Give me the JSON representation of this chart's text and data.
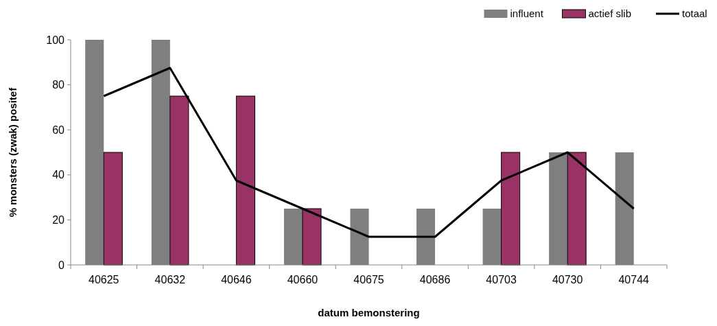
{
  "chart_data": {
    "type": "bar",
    "xlabel": "datum bemonstering",
    "ylabel": "% monsters (zwak) positef",
    "categories": [
      "40625",
      "40632",
      "40646",
      "40660",
      "40675",
      "40686",
      "40703",
      "40730",
      "40744"
    ],
    "series": [
      {
        "name": "influent",
        "color": "#7f7f7f",
        "values": [
          100,
          100,
          0,
          25,
          25,
          25,
          25,
          50,
          50
        ]
      },
      {
        "name": "actief slib",
        "color": "#993366",
        "values": [
          50,
          75,
          75,
          25,
          0,
          0,
          50,
          50,
          0
        ]
      },
      {
        "name": "totaal",
        "type": "line",
        "color": "#000000",
        "values": [
          75,
          87.5,
          37.5,
          25,
          12.5,
          12.5,
          37.5,
          50,
          25
        ]
      }
    ],
    "ylim": [
      0,
      100
    ],
    "yticks": [
      0,
      20,
      40,
      60,
      80,
      100
    ],
    "grid": false,
    "legend": "top right",
    "marker": "none"
  }
}
